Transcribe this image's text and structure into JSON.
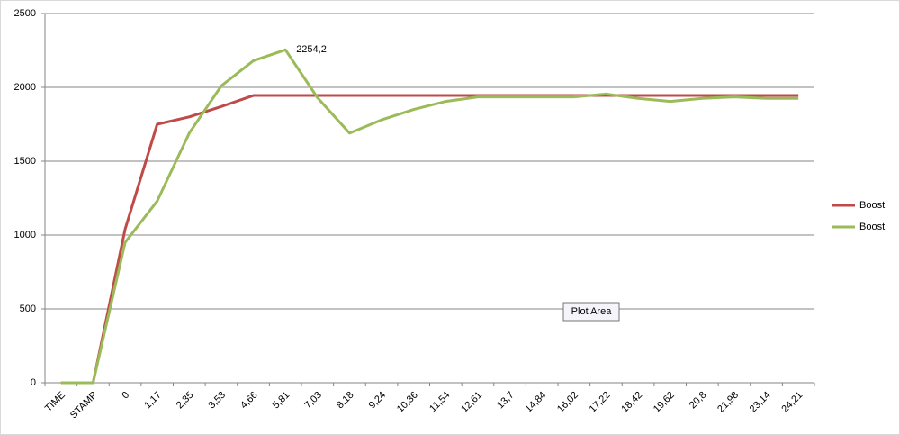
{
  "chart_data": {
    "type": "line",
    "categories": [
      "TIME",
      "STAMP",
      "0",
      "1,17",
      "2,35",
      "3,53",
      "4,66",
      "5,81",
      "7,03",
      "8,18",
      "9,24",
      "10,36",
      "11,54",
      "12,61",
      "13,7",
      "14,84",
      "16,02",
      "17,22",
      "18,42",
      "19,62",
      "20,8",
      "21,98",
      "23,14",
      "24,21"
    ],
    "series": [
      {
        "name": "Boost",
        "color": "#be4b48",
        "values": [
          0,
          0,
          1040,
          1750,
          1800,
          1870,
          1945,
          1945,
          1945,
          1945,
          1945,
          1945,
          1945,
          1945,
          1945,
          1945,
          1945,
          1945,
          1945,
          1945,
          1945,
          1945,
          1945,
          1945
        ]
      },
      {
        "name": "Boost",
        "color": "#9bbb59",
        "values": [
          0,
          0,
          950,
          1230,
          1690,
          2010,
          2180,
          2254.2,
          1930,
          1690,
          1780,
          1850,
          1905,
          1935,
          1935,
          1935,
          1935,
          1955,
          1925,
          1905,
          1925,
          1935,
          1925,
          1925
        ],
        "value_labels": [
          null,
          null,
          null,
          null,
          null,
          null,
          null,
          "2254,2",
          null,
          null,
          null,
          null,
          null,
          null,
          null,
          null,
          null,
          null,
          null,
          null,
          null,
          null,
          null,
          null
        ]
      }
    ],
    "ylim": [
      0,
      2500
    ],
    "yticks": [
      0,
      500,
      1000,
      1500,
      2000,
      2500
    ],
    "grid": true,
    "legend": "right",
    "tooltip": "Plot Area"
  }
}
